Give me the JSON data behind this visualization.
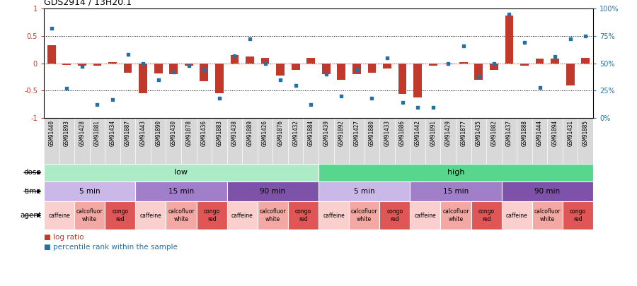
{
  "title": "GDS2914 / 13H20.1",
  "samples": [
    "GSM91440",
    "GSM91893",
    "GSM91428",
    "GSM91881",
    "GSM91434",
    "GSM91887",
    "GSM91443",
    "GSM91890",
    "GSM91430",
    "GSM91878",
    "GSM91436",
    "GSM91883",
    "GSM91438",
    "GSM91889",
    "GSM91426",
    "GSM91876",
    "GSM91432",
    "GSM91884",
    "GSM91439",
    "GSM91892",
    "GSM91427",
    "GSM91880",
    "GSM91433",
    "GSM91886",
    "GSM91442",
    "GSM91891",
    "GSM91429",
    "GSM91877",
    "GSM91435",
    "GSM91882",
    "GSM91437",
    "GSM91888",
    "GSM91444",
    "GSM91894",
    "GSM91431",
    "GSM91885"
  ],
  "log_ratio": [
    0.33,
    -0.03,
    -0.04,
    -0.04,
    0.02,
    -0.18,
    -0.55,
    -0.19,
    -0.2,
    -0.05,
    -0.33,
    -0.55,
    0.15,
    0.12,
    0.1,
    -0.22,
    -0.12,
    0.1,
    -0.2,
    -0.3,
    -0.2,
    -0.18,
    -0.1,
    -0.56,
    -0.62,
    -0.05,
    -0.02,
    0.02,
    -0.3,
    -0.12,
    0.87,
    -0.05,
    0.08,
    0.08,
    -0.4,
    0.1
  ],
  "percentile_rank": [
    82,
    27,
    47,
    12,
    17,
    58,
    50,
    35,
    42,
    48,
    44,
    18,
    57,
    72,
    50,
    35,
    30,
    12,
    40,
    20,
    44,
    18,
    55,
    14,
    10,
    10,
    50,
    66,
    38,
    50,
    95,
    69,
    28,
    56,
    72,
    75
  ],
  "bar_color": "#c0392b",
  "dot_color": "#2471a3",
  "xtick_bg": "#d8d8d8",
  "dose_groups": [
    {
      "label": "low",
      "start": 0,
      "end": 18,
      "color": "#abebc6"
    },
    {
      "label": "high",
      "start": 18,
      "end": 36,
      "color": "#58d68d"
    }
  ],
  "time_groups": [
    {
      "label": "5 min",
      "start": 0,
      "end": 6,
      "color": "#c9b8e8"
    },
    {
      "label": "15 min",
      "start": 6,
      "end": 12,
      "color": "#a07ec8"
    },
    {
      "label": "90 min",
      "start": 12,
      "end": 18,
      "color": "#7d52a8"
    },
    {
      "label": "5 min",
      "start": 18,
      "end": 24,
      "color": "#c9b8e8"
    },
    {
      "label": "15 min",
      "start": 24,
      "end": 30,
      "color": "#a07ec8"
    },
    {
      "label": "90 min",
      "start": 30,
      "end": 36,
      "color": "#7d52a8"
    }
  ],
  "agent_groups": [
    {
      "label": "caffeine",
      "start": 0,
      "end": 2,
      "color": "#f9d0cd"
    },
    {
      "label": "calcofluor\nwhite",
      "start": 2,
      "end": 4,
      "color": "#f4a8a3"
    },
    {
      "label": "congo\nred",
      "start": 4,
      "end": 6,
      "color": "#e05555"
    },
    {
      "label": "caffeine",
      "start": 6,
      "end": 8,
      "color": "#f9d0cd"
    },
    {
      "label": "calcofluor\nwhite",
      "start": 8,
      "end": 10,
      "color": "#f4a8a3"
    },
    {
      "label": "congo\nred",
      "start": 10,
      "end": 12,
      "color": "#e05555"
    },
    {
      "label": "caffeine",
      "start": 12,
      "end": 14,
      "color": "#f9d0cd"
    },
    {
      "label": "calcofluor\nwhite",
      "start": 14,
      "end": 16,
      "color": "#f4a8a3"
    },
    {
      "label": "congo\nred",
      "start": 16,
      "end": 18,
      "color": "#e05555"
    },
    {
      "label": "caffeine",
      "start": 18,
      "end": 20,
      "color": "#f9d0cd"
    },
    {
      "label": "calcofluor\nwhite",
      "start": 20,
      "end": 22,
      "color": "#f4a8a3"
    },
    {
      "label": "congo\nred",
      "start": 22,
      "end": 24,
      "color": "#e05555"
    },
    {
      "label": "caffeine",
      "start": 24,
      "end": 26,
      "color": "#f9d0cd"
    },
    {
      "label": "calcofluor\nwhite",
      "start": 26,
      "end": 28,
      "color": "#f4a8a3"
    },
    {
      "label": "congo\nred",
      "start": 28,
      "end": 30,
      "color": "#e05555"
    },
    {
      "label": "caffeine",
      "start": 30,
      "end": 32,
      "color": "#f9d0cd"
    },
    {
      "label": "calcofluor\nwhite",
      "start": 32,
      "end": 34,
      "color": "#f4a8a3"
    },
    {
      "label": "congo\nred",
      "start": 34,
      "end": 36,
      "color": "#e05555"
    }
  ]
}
